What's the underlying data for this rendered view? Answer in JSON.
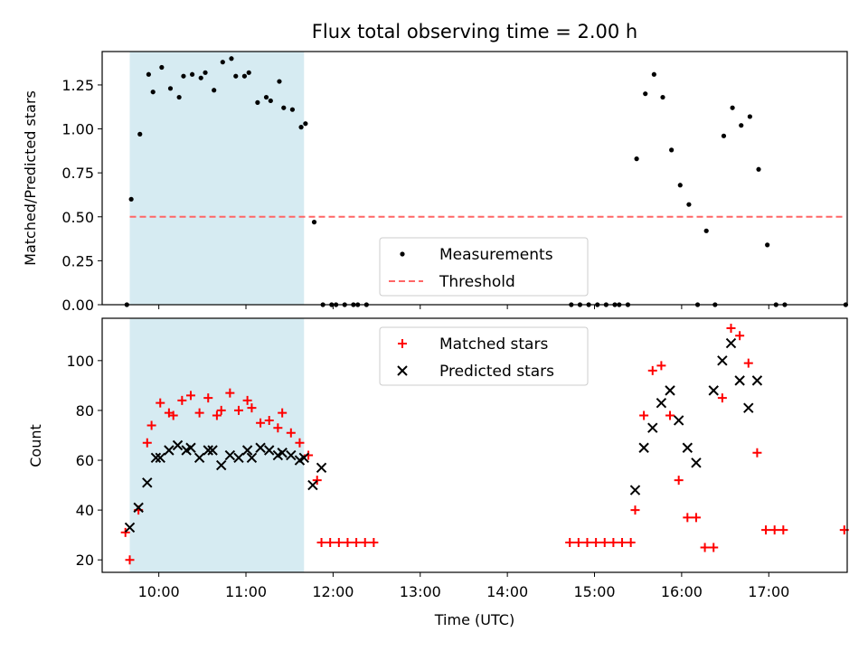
{
  "chart_data": [
    {
      "type": "scatter",
      "title": "Flux total observing time = 2.00 h",
      "xlabel": "",
      "ylabel": "Matched/Predicted stars",
      "xlim": [
        "09:21",
        "17:54"
      ],
      "ylim": [
        0,
        1.44
      ],
      "x_ticks": [
        "10:00",
        "11:00",
        "12:00",
        "13:00",
        "14:00",
        "15:00",
        "16:00",
        "17:00"
      ],
      "y_ticks": [
        "0.00",
        "0.25",
        "0.50",
        "0.75",
        "1.00",
        "1.25"
      ],
      "shaded_span": {
        "start": "09:40",
        "end": "11:40",
        "color": "#add8e6"
      },
      "legend_position": "lower center",
      "series": [
        {
          "name": "Measurements",
          "marker": "dot",
          "color": "#000000",
          "points": [
            [
              "09:38",
              0.0
            ],
            [
              "09:41",
              0.6
            ],
            [
              "09:47",
              0.97
            ],
            [
              "09:53",
              1.31
            ],
            [
              "09:56",
              1.21
            ],
            [
              "10:02",
              1.35
            ],
            [
              "10:08",
              1.23
            ],
            [
              "10:14",
              1.18
            ],
            [
              "10:17",
              1.3
            ],
            [
              "10:23",
              1.31
            ],
            [
              "10:29",
              1.29
            ],
            [
              "10:32",
              1.32
            ],
            [
              "10:38",
              1.22
            ],
            [
              "10:44",
              1.38
            ],
            [
              "10:50",
              1.4
            ],
            [
              "10:53",
              1.3
            ],
            [
              "10:59",
              1.3
            ],
            [
              "11:02",
              1.32
            ],
            [
              "11:08",
              1.15
            ],
            [
              "11:14",
              1.18
            ],
            [
              "11:17",
              1.16
            ],
            [
              "11:23",
              1.27
            ],
            [
              "11:26",
              1.12
            ],
            [
              "11:32",
              1.11
            ],
            [
              "11:38",
              1.01
            ],
            [
              "11:41",
              1.03
            ],
            [
              "11:47",
              0.47
            ],
            [
              "11:53",
              0.0
            ],
            [
              "11:59",
              0.0
            ],
            [
              "12:02",
              0.0
            ],
            [
              "12:08",
              0.0
            ],
            [
              "12:14",
              0.0
            ],
            [
              "12:17",
              0.0
            ],
            [
              "12:23",
              0.0
            ],
            [
              "14:44",
              0.0
            ],
            [
              "14:50",
              0.0
            ],
            [
              "14:56",
              0.0
            ],
            [
              "15:02",
              0.0
            ],
            [
              "15:08",
              0.0
            ],
            [
              "15:14",
              0.0
            ],
            [
              "15:17",
              0.0
            ],
            [
              "15:23",
              0.0
            ],
            [
              "15:29",
              0.83
            ],
            [
              "15:35",
              1.2
            ],
            [
              "15:41",
              1.31
            ],
            [
              "15:47",
              1.18
            ],
            [
              "15:53",
              0.88
            ],
            [
              "15:59",
              0.68
            ],
            [
              "16:05",
              0.57
            ],
            [
              "16:11",
              0.0
            ],
            [
              "16:17",
              0.42
            ],
            [
              "16:23",
              0.0
            ],
            [
              "16:29",
              0.96
            ],
            [
              "16:35",
              1.12
            ],
            [
              "16:41",
              1.02
            ],
            [
              "16:47",
              1.07
            ],
            [
              "16:53",
              0.77
            ],
            [
              "16:59",
              0.34
            ],
            [
              "17:05",
              0.0
            ],
            [
              "17:11",
              0.0
            ],
            [
              "17:53",
              0.0
            ]
          ]
        },
        {
          "name": "Threshold",
          "style": "dashed",
          "color": "#ff6666",
          "points": [
            [
              "09:40",
              0.5
            ],
            [
              "17:53",
              0.5
            ]
          ]
        }
      ]
    },
    {
      "type": "scatter",
      "title": "",
      "xlabel": "Time (UTC)",
      "ylabel": "Count",
      "xlim": [
        "09:21",
        "17:54"
      ],
      "ylim": [
        15,
        117
      ],
      "x_ticks": [
        "10:00",
        "11:00",
        "12:00",
        "13:00",
        "14:00",
        "15:00",
        "16:00",
        "17:00"
      ],
      "y_ticks": [
        "20",
        "40",
        "60",
        "80",
        "100"
      ],
      "shaded_span": {
        "start": "09:40",
        "end": "11:40",
        "color": "#add8e6"
      },
      "legend_position": "upper center",
      "series": [
        {
          "name": "Matched stars",
          "marker": "plus",
          "color": "#ff0000",
          "points": [
            [
              "09:37",
              31
            ],
            [
              "09:40",
              20
            ],
            [
              "09:46",
              40
            ],
            [
              "09:52",
              67
            ],
            [
              "09:55",
              74
            ],
            [
              "10:01",
              83
            ],
            [
              "10:07",
              79
            ],
            [
              "10:10",
              78
            ],
            [
              "10:16",
              84
            ],
            [
              "10:22",
              86
            ],
            [
              "10:28",
              79
            ],
            [
              "10:34",
              85
            ],
            [
              "10:40",
              78
            ],
            [
              "10:43",
              80
            ],
            [
              "10:49",
              87
            ],
            [
              "10:55",
              80
            ],
            [
              "11:01",
              84
            ],
            [
              "11:04",
              81
            ],
            [
              "11:10",
              75
            ],
            [
              "11:16",
              76
            ],
            [
              "11:22",
              73
            ],
            [
              "11:25",
              79
            ],
            [
              "11:31",
              71
            ],
            [
              "11:37",
              67
            ],
            [
              "11:43",
              62
            ],
            [
              "11:49",
              52
            ],
            [
              "11:52",
              27
            ],
            [
              "11:58",
              27
            ],
            [
              "12:04",
              27
            ],
            [
              "12:10",
              27
            ],
            [
              "12:16",
              27
            ],
            [
              "12:22",
              27
            ],
            [
              "12:28",
              27
            ],
            [
              "14:43",
              27
            ],
            [
              "14:49",
              27
            ],
            [
              "14:55",
              27
            ],
            [
              "15:01",
              27
            ],
            [
              "15:07",
              27
            ],
            [
              "15:13",
              27
            ],
            [
              "15:19",
              27
            ],
            [
              "15:25",
              27
            ],
            [
              "15:28",
              40
            ],
            [
              "15:34",
              78
            ],
            [
              "15:40",
              96
            ],
            [
              "15:46",
              98
            ],
            [
              "15:52",
              78
            ],
            [
              "15:58",
              52
            ],
            [
              "16:04",
              37
            ],
            [
              "16:10",
              37
            ],
            [
              "16:16",
              25
            ],
            [
              "16:22",
              25
            ],
            [
              "16:28",
              85
            ],
            [
              "16:34",
              113
            ],
            [
              "16:40",
              110
            ],
            [
              "16:46",
              99
            ],
            [
              "16:52",
              63
            ],
            [
              "16:58",
              32
            ],
            [
              "17:04",
              32
            ],
            [
              "17:10",
              32
            ],
            [
              "17:52",
              32
            ]
          ]
        },
        {
          "name": "Predicted stars",
          "marker": "x",
          "color": "#000000",
          "points": [
            [
              "09:40",
              33
            ],
            [
              "09:46",
              41
            ],
            [
              "09:52",
              51
            ],
            [
              "09:58",
              61
            ],
            [
              "10:01",
              61
            ],
            [
              "10:07",
              64
            ],
            [
              "10:13",
              66
            ],
            [
              "10:19",
              64
            ],
            [
              "10:22",
              65
            ],
            [
              "10:28",
              61
            ],
            [
              "10:34",
              64
            ],
            [
              "10:37",
              64
            ],
            [
              "10:43",
              58
            ],
            [
              "10:49",
              62
            ],
            [
              "10:55",
              61
            ],
            [
              "11:01",
              64
            ],
            [
              "11:04",
              61
            ],
            [
              "11:10",
              65
            ],
            [
              "11:16",
              64
            ],
            [
              "11:22",
              62
            ],
            [
              "11:25",
              63
            ],
            [
              "11:31",
              62
            ],
            [
              "11:37",
              60
            ],
            [
              "11:40",
              61
            ],
            [
              "11:46",
              50
            ],
            [
              "11:52",
              57
            ],
            [
              "15:28",
              48
            ],
            [
              "15:34",
              65
            ],
            [
              "15:40",
              73
            ],
            [
              "15:46",
              83
            ],
            [
              "15:52",
              88
            ],
            [
              "15:58",
              76
            ],
            [
              "16:04",
              65
            ],
            [
              "16:10",
              59
            ],
            [
              "16:22",
              88
            ],
            [
              "16:28",
              100
            ],
            [
              "16:34",
              107
            ],
            [
              "16:40",
              92
            ],
            [
              "16:46",
              81
            ],
            [
              "16:52",
              92
            ]
          ]
        }
      ]
    }
  ]
}
